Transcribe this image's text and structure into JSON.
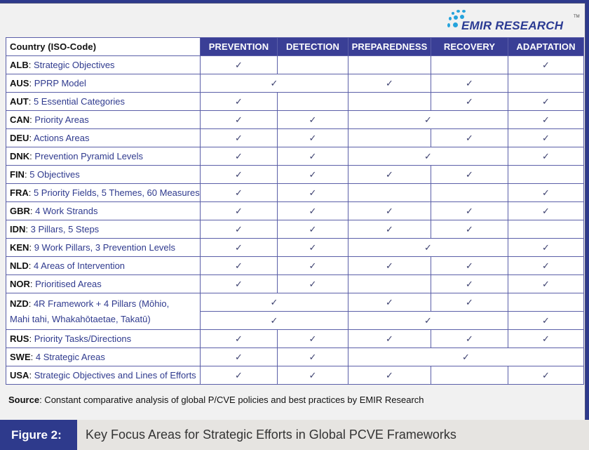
{
  "logo": {
    "text": "EMIR RESEARCH",
    "tm": "TM"
  },
  "table": {
    "header": [
      "Country (ISO-Code)",
      "PREVENTION",
      "DETECTION",
      "PREPAREDNESS",
      "RECOVERY",
      "ADAPTATION"
    ],
    "check_symbol": "✓",
    "rows": [
      {
        "code": "ALB",
        "sep": ":",
        "text": " Strategic Objectives",
        "cells": [
          [
            1,
            1
          ],
          [
            0,
            1
          ],
          [
            0,
            1
          ],
          [
            0,
            1
          ],
          [
            1,
            1
          ]
        ]
      },
      {
        "code": "AUS",
        "sep": ":",
        "text": " PPRP Model",
        "cells": [
          [
            1,
            2
          ],
          [
            1,
            1
          ],
          [
            1,
            1
          ],
          [
            0,
            1
          ]
        ]
      },
      {
        "code": "AUT",
        "sep": ":",
        "text": " 5 Essential Categories",
        "cells": [
          [
            1,
            1
          ],
          [
            0,
            1
          ],
          [
            0,
            1
          ],
          [
            1,
            1
          ],
          [
            1,
            1
          ]
        ]
      },
      {
        "code": "CAN",
        "sep": ":",
        "text": " Priority Areas",
        "cells": [
          [
            1,
            1
          ],
          [
            1,
            1
          ],
          [
            1,
            2
          ],
          [
            1,
            1
          ]
        ]
      },
      {
        "code": "DEU",
        "sep": ":",
        "text": " Actions Areas",
        "cells": [
          [
            1,
            1
          ],
          [
            1,
            1
          ],
          [
            0,
            1
          ],
          [
            1,
            1
          ],
          [
            1,
            1
          ]
        ]
      },
      {
        "code": "DNK",
        "sep": ":",
        "text": " Prevention Pyramid Levels",
        "cells": [
          [
            1,
            1
          ],
          [
            1,
            1
          ],
          [
            1,
            2
          ],
          [
            1,
            1
          ]
        ]
      },
      {
        "code": "FIN",
        "sep": ":",
        "text": " 5 Objectives",
        "cells": [
          [
            1,
            1
          ],
          [
            1,
            1
          ],
          [
            1,
            1
          ],
          [
            1,
            1
          ],
          [
            0,
            1
          ]
        ]
      },
      {
        "code": "FRA",
        "sep": ":",
        "text": " 5 Priority Fields, 5 Themes, 60 Measures",
        "cells": [
          [
            1,
            1
          ],
          [
            1,
            1
          ],
          [
            0,
            1
          ],
          [
            0,
            1
          ],
          [
            1,
            1
          ]
        ]
      },
      {
        "code": "GBR",
        "sep": ":",
        "text": " 4 Work Strands",
        "cells": [
          [
            1,
            1
          ],
          [
            1,
            1
          ],
          [
            1,
            1
          ],
          [
            1,
            1
          ],
          [
            1,
            1
          ]
        ]
      },
      {
        "code": "IDN",
        "sep": ":",
        "text": " 3 Pillars, 5 Steps",
        "cells": [
          [
            1,
            1
          ],
          [
            1,
            1
          ],
          [
            1,
            1
          ],
          [
            1,
            1
          ],
          [
            0,
            1
          ]
        ]
      },
      {
        "code": "KEN",
        "sep": ":",
        "text": " 9 Work Pillars, 3 Prevention Levels",
        "cells": [
          [
            1,
            1
          ],
          [
            1,
            1
          ],
          [
            1,
            2
          ],
          [
            1,
            1
          ]
        ]
      },
      {
        "code": "NLD",
        "sep": ":",
        "text": " 4 Areas of Intervention",
        "cells": [
          [
            1,
            1
          ],
          [
            1,
            1
          ],
          [
            1,
            1
          ],
          [
            1,
            1
          ],
          [
            1,
            1
          ]
        ]
      },
      {
        "code": "NOR",
        "sep": ":",
        "text": " Prioritised Areas",
        "cells": [
          [
            1,
            1
          ],
          [
            1,
            1
          ],
          [
            0,
            1
          ],
          [
            1,
            1
          ],
          [
            1,
            1
          ]
        ]
      },
      {
        "code": "NZD",
        "sep": ":",
        "text": " 4R Framework + 4 Pillars (Mōhio, Mahi tahi, Whakahōtaetae, Takatū)",
        "cells": [
          [
            1,
            2
          ],
          [
            1,
            1
          ],
          [
            1,
            1
          ],
          [
            0,
            1
          ]
        ],
        "cells2": [
          [
            1,
            2
          ],
          [
            1,
            2
          ],
          [
            1,
            1
          ]
        ]
      },
      {
        "code": "RUS",
        "sep": ":",
        "text": " Priority Tasks/Directions",
        "cells": [
          [
            1,
            1
          ],
          [
            1,
            1
          ],
          [
            1,
            1
          ],
          [
            1,
            1
          ],
          [
            1,
            1
          ]
        ]
      },
      {
        "code": "SWE",
        "sep": ":",
        "text": " 4 Strategic Areas",
        "cells": [
          [
            1,
            1
          ],
          [
            1,
            1
          ],
          [
            1,
            3
          ]
        ]
      },
      {
        "code": "USA",
        "sep": ":",
        "text": " Strategic Objectives and Lines of Efforts",
        "cells": [
          [
            1,
            1
          ],
          [
            1,
            1
          ],
          [
            1,
            1
          ],
          [
            0,
            1
          ],
          [
            1,
            1
          ]
        ]
      }
    ]
  },
  "source": {
    "label": "Source",
    "text": ": Constant comparative analysis of global P/CVE policies and best practices by EMIR Research"
  },
  "figure": {
    "label": "Figure 2:",
    "title": "Key Focus Areas for Strategic Efforts in Global PCVE Frameworks"
  },
  "colors": {
    "navy": "#2e3a8c",
    "header": "#3a3f96",
    "logo_dots": "#25a3dc"
  }
}
